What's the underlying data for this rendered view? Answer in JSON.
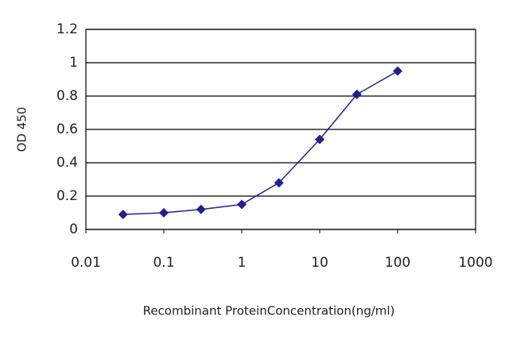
{
  "chart_data": {
    "type": "line",
    "xlabel": "Recombinant ProteinConcentration(ng/ml)",
    "ylabel": "OD 450",
    "x": [
      0.03,
      0.1,
      0.3,
      1,
      3,
      10,
      30,
      100
    ],
    "values": [
      0.09,
      0.1,
      0.12,
      0.15,
      0.28,
      0.54,
      0.81,
      0.95
    ],
    "color": "#1f1f9a",
    "xscale": "log",
    "xlim": [
      0.01,
      1000
    ],
    "xticks": [
      0.01,
      0.1,
      1,
      10,
      100,
      1000
    ],
    "ylim": [
      0,
      1.2
    ],
    "yticks": [
      0,
      0.2,
      0.4,
      0.6,
      0.8,
      1,
      1.2
    ],
    "grid": true
  }
}
